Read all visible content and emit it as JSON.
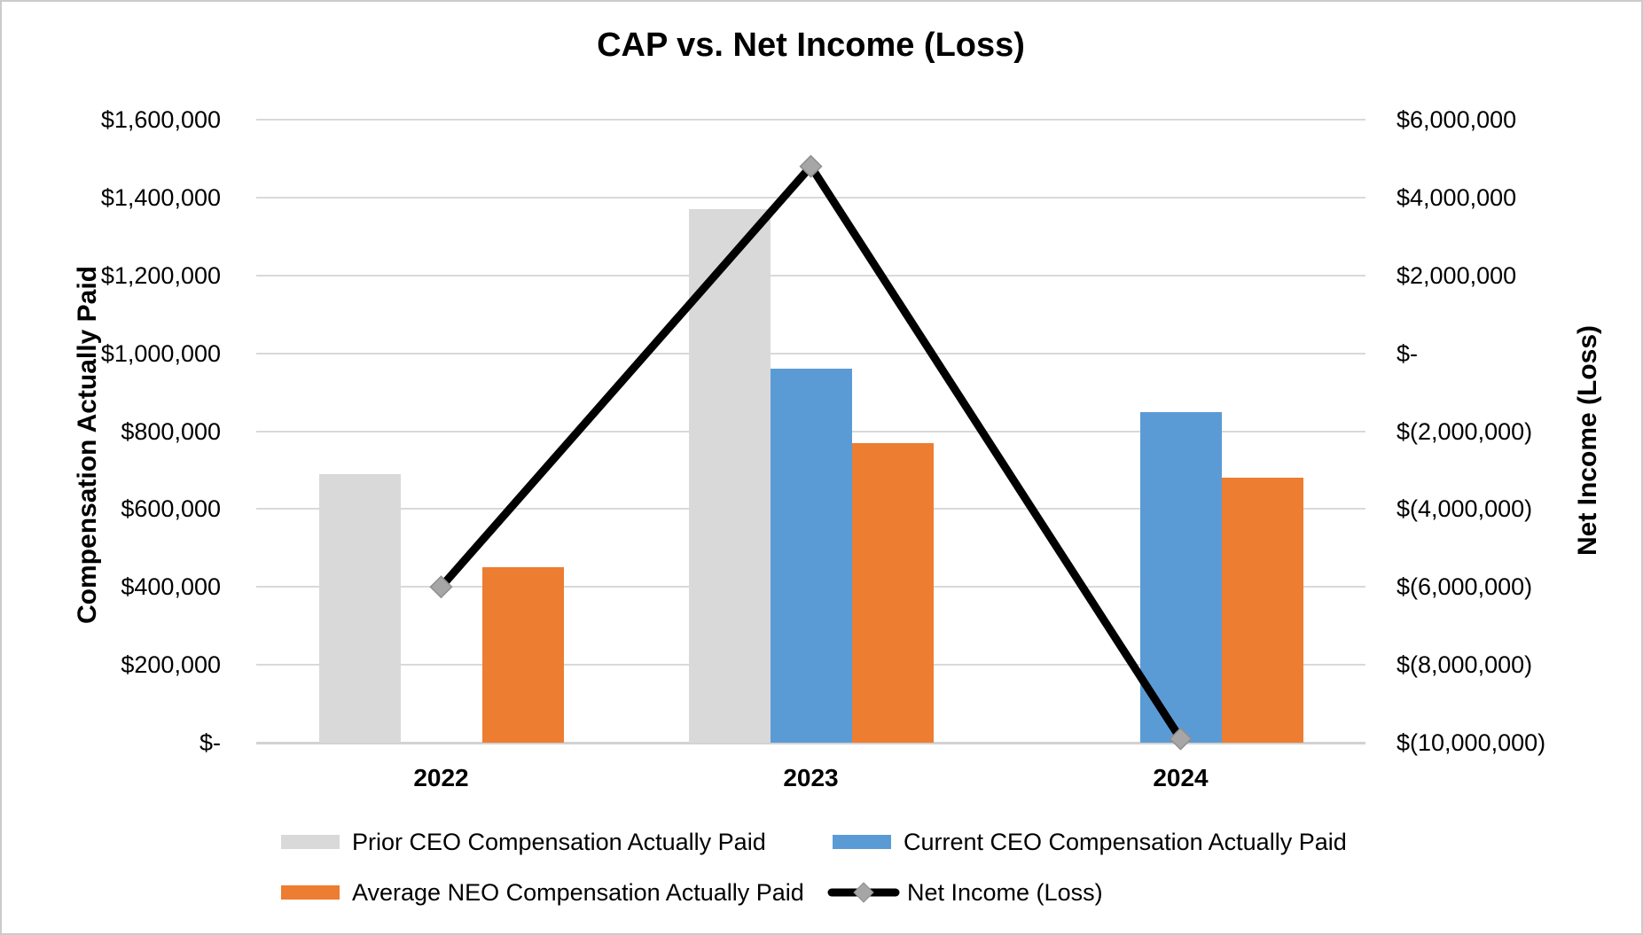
{
  "figure": {
    "background": "#FFFFFF",
    "border_color": "#CBCBCB"
  },
  "chart_data": {
    "type": "combo-bar-line",
    "title": "CAP vs. Net Income (Loss)",
    "categories": [
      "2022",
      "2023",
      "2024"
    ],
    "bar_series": [
      {
        "name": "Prior CEO Compensation Actually Paid",
        "color": "#D9D9D9",
        "values": [
          690000,
          1370000,
          null
        ]
      },
      {
        "name": "Current CEO Compensation Actually Paid",
        "color": "#5B9BD5",
        "values": [
          null,
          960000,
          850000
        ]
      },
      {
        "name": "Average NEO Compensation Actually Paid",
        "color": "#ED7D31",
        "values": [
          450000,
          770000,
          680000
        ]
      }
    ],
    "line_series": {
      "name": "Net Income (Loss)",
      "color": "#000000",
      "marker_shape": "diamond",
      "marker_color": "#A6A6A6",
      "values": [
        -6000000,
        4800000,
        -9900000
      ]
    },
    "left_axis": {
      "title": "Compensation Actually Paid",
      "min": 0,
      "max": 1600000,
      "step": 200000,
      "tick_labels": [
        "$1,600,000",
        "$1,400,000",
        "$1,200,000",
        "$1,000,000",
        "$800,000",
        "$600,000",
        "$400,000",
        "$200,000",
        "$-"
      ]
    },
    "right_axis": {
      "title": "Net Income (Loss)",
      "min": -10000000,
      "max": 6000000,
      "step": 2000000,
      "tick_labels": [
        "$6,000,000",
        "$4,000,000",
        "$2,000,000",
        "$-",
        "$(2,000,000)",
        "$(4,000,000)",
        "$(6,000,000)",
        "$(8,000,000)",
        "$(10,000,000)"
      ]
    },
    "grid": true,
    "gridline_color": "#D9D9D9",
    "legend_position": "bottom"
  }
}
